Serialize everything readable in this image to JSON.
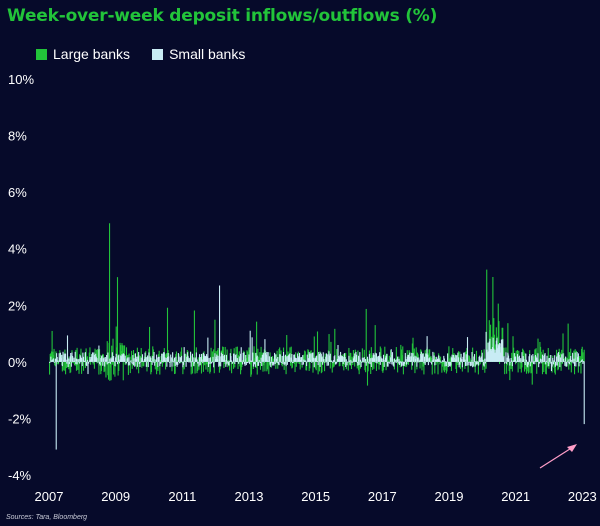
{
  "chart_data": {
    "type": "bar",
    "title": "Week-over-week deposit inflows/outflows (%)",
    "source": "Sources: Tara, Bloomberg",
    "series": [
      {
        "name": "Large banks",
        "color": "#22c43a"
      },
      {
        "name": "Small banks",
        "color": "#c8ecf4"
      }
    ],
    "y_ticks": [
      "10%",
      "8%",
      "6%",
      "4%",
      "2%",
      "0%",
      "-2%",
      "-4%"
    ],
    "ylim": [
      -4,
      10
    ],
    "x_ticks": [
      "2007",
      "2009",
      "2011",
      "2013",
      "2015",
      "2017",
      "2019",
      "2021",
      "2023"
    ],
    "xlim": [
      2007.0,
      2023.05
    ],
    "notable_values": [
      {
        "series": "Small banks",
        "x": 2007.2,
        "value": -3.1
      },
      {
        "series": "Large banks",
        "x": 2008.8,
        "value": 4.9
      },
      {
        "series": "Small banks",
        "x": 2012.1,
        "value": 2.7
      },
      {
        "series": "Large banks",
        "x": 2020.3,
        "value": 3.0
      },
      {
        "series": "Small banks",
        "x": 2023.2,
        "value": -2.2
      }
    ],
    "annotation": "arrow pointing at the 2023 small-bank outflow",
    "grid": false,
    "legend_position": "top-left"
  }
}
